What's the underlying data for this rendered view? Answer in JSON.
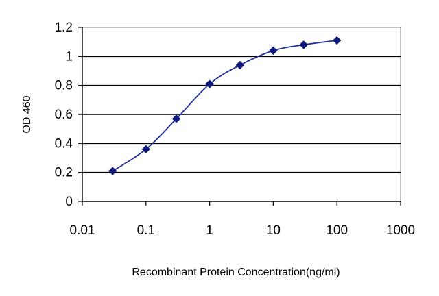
{
  "chart_data": {
    "type": "line",
    "title": "",
    "xlabel": "Recombinant Protein Concentration(ng/ml)",
    "ylabel": "OD 460",
    "x_scale": "log",
    "xlim": [
      0.01,
      1000
    ],
    "ylim": [
      0,
      1.2
    ],
    "x_ticks": [
      "0.01",
      "0.1",
      "1",
      "10",
      "100",
      "1000"
    ],
    "y_ticks": [
      "0",
      "0.2",
      "0.4",
      "0.6",
      "0.8",
      "1",
      "1.2"
    ],
    "grid": "horizontal",
    "legend": "none",
    "series": [
      {
        "color": "#1f2e9e",
        "marker": "diamond",
        "marker_color": "#0e1a7a",
        "x": [
          0.03,
          0.1,
          0.3,
          1,
          3,
          10,
          30,
          100
        ],
        "y": [
          0.21,
          0.36,
          0.57,
          0.81,
          0.94,
          1.04,
          1.08,
          1.11
        ]
      }
    ],
    "colors": {
      "plot_background": "#ffffff",
      "plot_border": "#808080",
      "gridline": "#000000",
      "axis_line": "#000000"
    }
  }
}
